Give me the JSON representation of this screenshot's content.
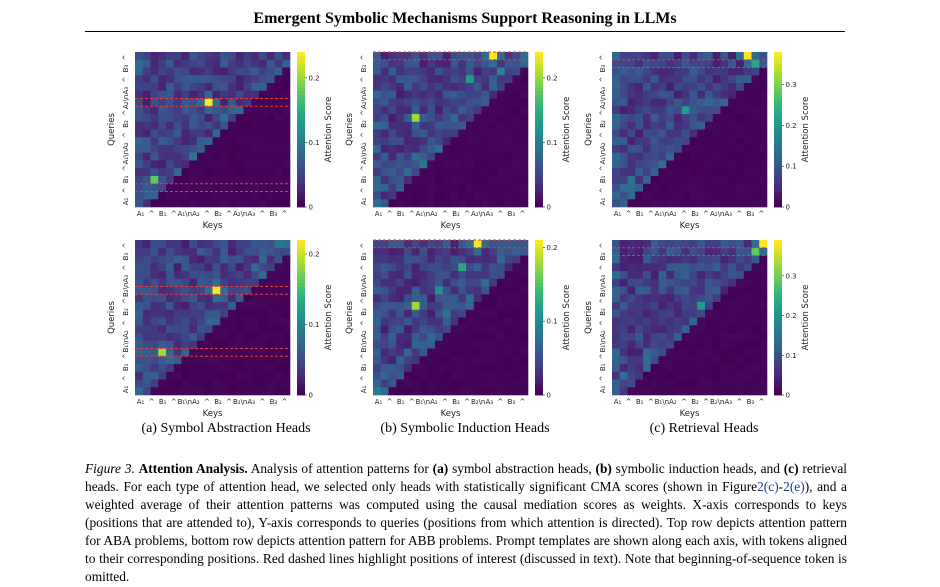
{
  "page": {
    "header": "Emergent Symbolic Mechanisms Support Reasoning in LLMs"
  },
  "figure": {
    "panel_captions": [
      "(a) Symbol Abstraction Heads",
      "(b) Symbolic Induction Heads",
      "(c) Retrieval Heads"
    ],
    "axis": {
      "xlabel": "Keys",
      "ylabel": "Queries",
      "colorbar_label": "Attention Score"
    },
    "tick_labels": {
      "x_top_row": [
        "A₁",
        "^",
        "B₁",
        "^",
        "A₁\\n",
        "A₂",
        "^",
        "B₂",
        "^",
        "A₂\\n",
        "A₃",
        "^",
        "B₃",
        "^"
      ],
      "x_bottom_row": [
        "A₁",
        "^",
        "B₁",
        "^",
        "B₁\\n",
        "A₂",
        "^",
        "B₂",
        "^",
        "B₂\\n",
        "A₃",
        "^",
        "B₃",
        "^"
      ],
      "y_top_row": [
        "A₁",
        "^",
        "B₁",
        "^",
        "A₁\\n",
        "A₂",
        "^",
        "B₂",
        "^",
        "A₂\\n",
        "A₃",
        "^",
        "B₃",
        "^"
      ],
      "y_bottom_row": [
        "A₁",
        "^",
        "B₁",
        "^",
        "B₁\\n",
        "A₂",
        "^",
        "B₂",
        "^",
        "B₂\\n",
        "A₃",
        "^",
        "B₃",
        "^"
      ]
    },
    "colorbars": [
      {
        "panel": "a-top",
        "ticks": [
          0,
          0.1,
          0.2
        ],
        "tick_labels": [
          "0",
          "0.1",
          "0.2"
        ],
        "max": 0.24
      },
      {
        "panel": "b-top",
        "ticks": [
          0,
          0.1,
          0.2
        ],
        "tick_labels": [
          "0",
          "0.1",
          "0.2"
        ],
        "max": 0.24
      },
      {
        "panel": "c-top",
        "ticks": [
          0,
          0.1,
          0.2,
          0.3
        ],
        "tick_labels": [
          "0",
          "0.1",
          "0.2",
          "0.3"
        ],
        "max": 0.38
      },
      {
        "panel": "a-bottom",
        "ticks": [
          0,
          0.1,
          0.2
        ],
        "tick_labels": [
          "0",
          "0.1",
          "0.2"
        ],
        "max": 0.22
      },
      {
        "panel": "b-bottom",
        "ticks": [
          0,
          0.1,
          0.2
        ],
        "tick_labels": [
          "0",
          "0.1",
          "0.2"
        ],
        "max": 0.21
      },
      {
        "panel": "c-bottom",
        "ticks": [
          0,
          0.1,
          0.2,
          0.3
        ],
        "tick_labels": [
          "0",
          "0.1",
          "0.2",
          "0.3"
        ],
        "max": 0.39
      }
    ],
    "colormap": [
      "#440154",
      "#482878",
      "#3e4989",
      "#31688e",
      "#26828e",
      "#1f9e89",
      "#35b779",
      "#6ece58",
      "#b5de2b",
      "#fde725"
    ],
    "highlight_color": "#e23b3b"
  },
  "caption": {
    "label": "Figure 3.",
    "title": "Attention Analysis.",
    "seg1": " Analysis of attention patterns for ",
    "a": "(a)",
    "seg2": " symbol abstraction heads, ",
    "b": "(b)",
    "seg3": " symbolic induction heads, and ",
    "c": "(c)",
    "seg4": " retrieval heads. For each type of attention head, we selected only heads with statistically significant CMA scores (shown in Figure",
    "link1": "2(c)",
    "seg5": "-",
    "link2": "2(e)",
    "seg6": "), and a weighted average of their attention patterns was computed using the causal mediation scores as weights. X-axis corresponds to keys (positions that are attended to), Y-axis corresponds to queries (positions from which attention is directed). Top row depicts attention pattern for ABA problems, bottom row depicts attention pattern for ABB problems. Prompt templates are shown along each axis, with tokens aligned to their corresponding positions. Red dashed lines highlight positions of interest (discussed in text). Note that beginning-of-sequence token is omitted."
  }
}
